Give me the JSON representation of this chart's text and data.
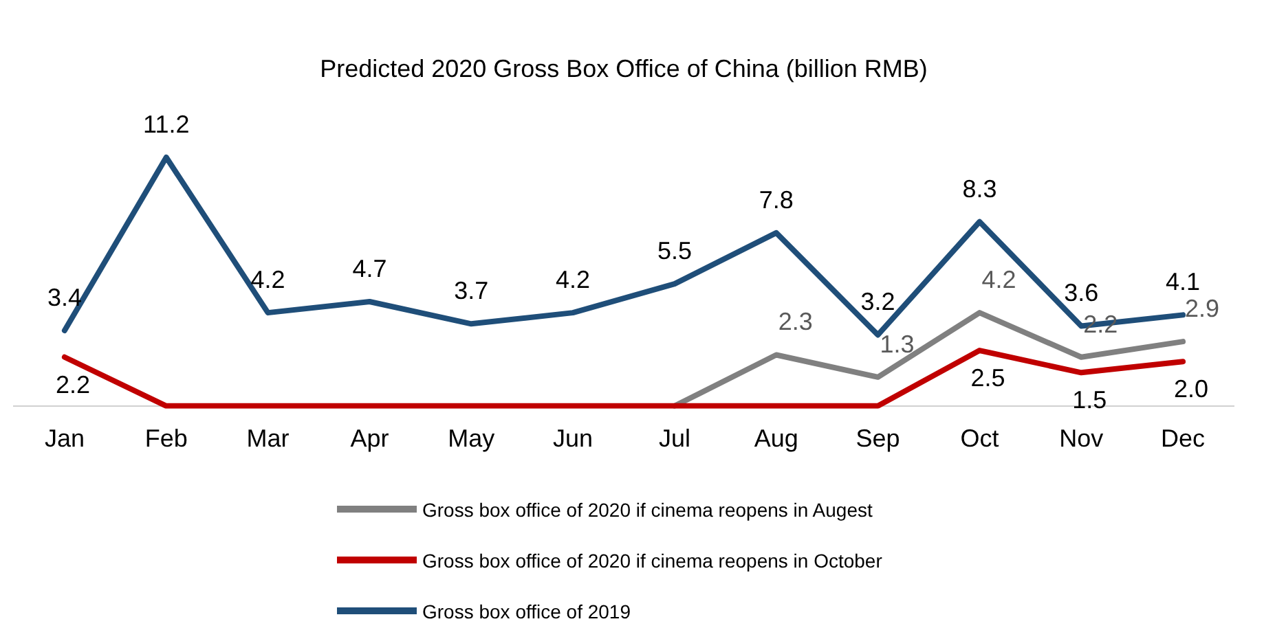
{
  "chart_data": {
    "type": "line",
    "title": "Predicted 2020 Gross Box Office of China (billion RMB)",
    "categories": [
      "Jan",
      "Feb",
      "Mar",
      "Apr",
      "May",
      "Jun",
      "Jul",
      "Aug",
      "Sep",
      "Oct",
      "Nov",
      "Dec"
    ],
    "series": [
      {
        "name": "Gross box office of 2020 if cinema reopens in Augest",
        "color": "#808080",
        "values": [
          null,
          null,
          null,
          null,
          null,
          null,
          0,
          2.3,
          1.3,
          4.2,
          2.2,
          2.9
        ],
        "value_labels": [
          null,
          null,
          null,
          null,
          null,
          null,
          null,
          "2.3",
          "1.3",
          "4.2",
          "2.2",
          "2.9"
        ]
      },
      {
        "name": "Gross box office of 2020 if cinema reopens in October",
        "color": "#c00000",
        "values": [
          2.2,
          0,
          0,
          0,
          0,
          0,
          0,
          0,
          0,
          2.5,
          1.5,
          2.0
        ],
        "value_labels": [
          "2.2",
          null,
          null,
          null,
          null,
          null,
          null,
          null,
          null,
          "2.5",
          "1.5",
          "2.0"
        ]
      },
      {
        "name": "Gross box office of 2019",
        "color": "#1f4e79",
        "values": [
          3.4,
          11.2,
          4.2,
          4.7,
          3.7,
          4.2,
          5.5,
          7.8,
          3.2,
          8.3,
          3.6,
          4.1
        ],
        "value_labels": [
          "3.4",
          "11.2",
          "4.2",
          "4.7",
          "3.7",
          "4.2",
          "5.5",
          "7.8",
          "3.2",
          "8.3",
          "3.6",
          "4.1"
        ]
      }
    ],
    "legend": "bottom",
    "grid": false,
    "marker": "none",
    "line_style": "solid",
    "tick_labels": "x"
  }
}
